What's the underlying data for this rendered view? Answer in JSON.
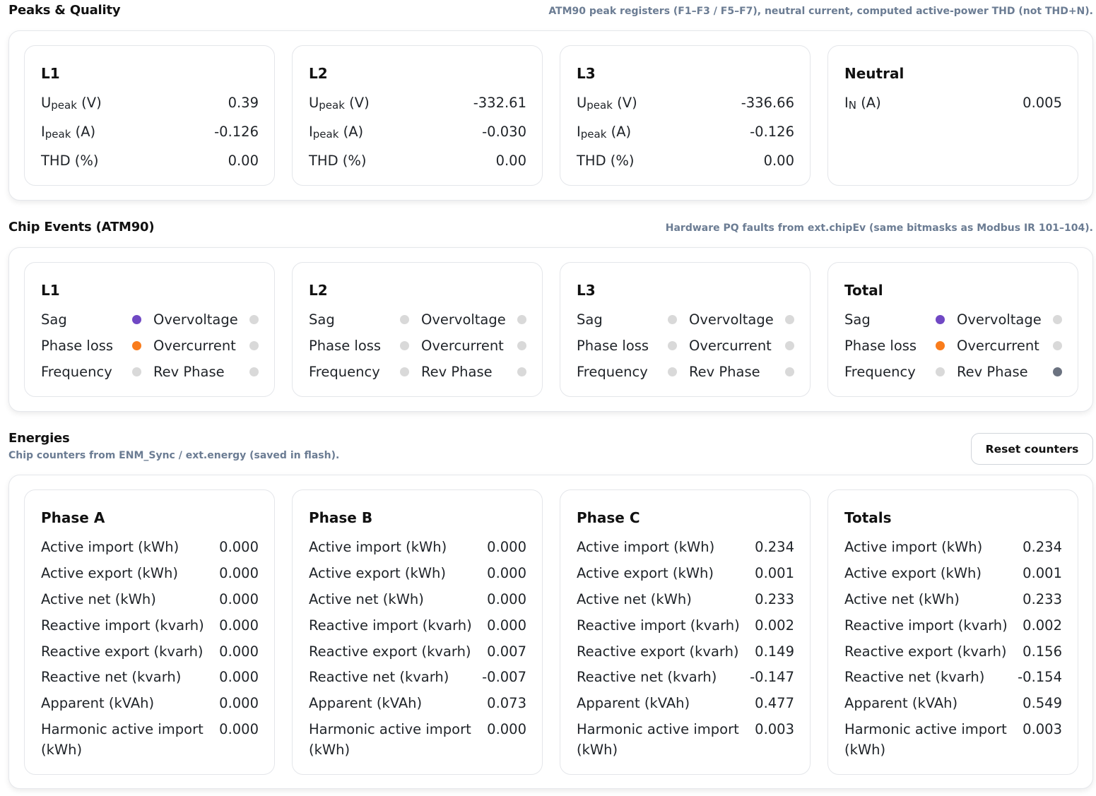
{
  "peaks": {
    "title": "Peaks & Quality",
    "desc": "ATM90 peak registers (F1–F3 / F5–F7), neutral current, computed active-power THD (not THD+N).",
    "cards": [
      {
        "title": "L1",
        "upeak": "0.39",
        "ipeak": "-0.126",
        "thd": "0.00"
      },
      {
        "title": "L2",
        "upeak": "-332.61",
        "ipeak": "-0.030",
        "thd": "0.00"
      },
      {
        "title": "L3",
        "upeak": "-336.66",
        "ipeak": "-0.126",
        "thd": "0.00"
      }
    ],
    "labels": {
      "u": "U",
      "i": "I",
      "peak": "peak",
      "volt_unit": " (V)",
      "amp_unit": " (A)",
      "thd": "THD (%)"
    },
    "neutral": {
      "title": "Neutral",
      "label_main": "I",
      "label_sub": "N",
      "label_unit": " (A)",
      "value": "0.005"
    }
  },
  "events": {
    "title": "Chip Events (ATM90)",
    "desc": "Hardware PQ faults from ext.chipEv (same bitmasks as Modbus IR 101–104).",
    "labels": {
      "sag": "Sag",
      "phase_loss": "Phase loss",
      "frequency": "Frequency",
      "overvoltage": "Overvoltage",
      "overcurrent": "Overcurrent",
      "rev_phase": "Rev Phase"
    },
    "colors": {
      "off": "#d9d9d9",
      "purple": "#7048c4",
      "orange": "#f97c1c",
      "dark": "#6b7280"
    },
    "cards": [
      {
        "title": "L1",
        "sag": "purple",
        "phase_loss": "orange",
        "frequency": "off",
        "overvoltage": "off",
        "overcurrent": "off",
        "rev_phase": "off"
      },
      {
        "title": "L2",
        "sag": "off",
        "phase_loss": "off",
        "frequency": "off",
        "overvoltage": "off",
        "overcurrent": "off",
        "rev_phase": "off"
      },
      {
        "title": "L3",
        "sag": "off",
        "phase_loss": "off",
        "frequency": "off",
        "overvoltage": "off",
        "overcurrent": "off",
        "rev_phase": "off"
      },
      {
        "title": "Total",
        "sag": "purple",
        "phase_loss": "orange",
        "frequency": "off",
        "overvoltage": "off",
        "overcurrent": "off",
        "rev_phase": "dark"
      }
    ]
  },
  "energies": {
    "title": "Energies",
    "desc": "Chip counters from ENM_Sync / ext.energy (saved in flash).",
    "reset_label": "Reset counters",
    "row_labels": [
      "Active import (kWh)",
      "Active export (kWh)",
      "Active net (kWh)",
      "Reactive import (kvarh)",
      "Reactive export (kvarh)",
      "Reactive net (kvarh)",
      "Apparent (kVAh)",
      "Harmonic active import (kWh)"
    ],
    "cards": [
      {
        "title": "Phase A",
        "values": [
          "0.000",
          "0.000",
          "0.000",
          "0.000",
          "0.000",
          "0.000",
          "0.000",
          "0.000"
        ]
      },
      {
        "title": "Phase B",
        "values": [
          "0.000",
          "0.000",
          "0.000",
          "0.000",
          "0.007",
          "-0.007",
          "0.073",
          "0.000"
        ]
      },
      {
        "title": "Phase C",
        "values": [
          "0.234",
          "0.001",
          "0.233",
          "0.002",
          "0.149",
          "-0.147",
          "0.477",
          "0.003"
        ]
      },
      {
        "title": "Totals",
        "values": [
          "0.234",
          "0.001",
          "0.233",
          "0.002",
          "0.156",
          "-0.154",
          "0.549",
          "0.003"
        ]
      }
    ]
  }
}
